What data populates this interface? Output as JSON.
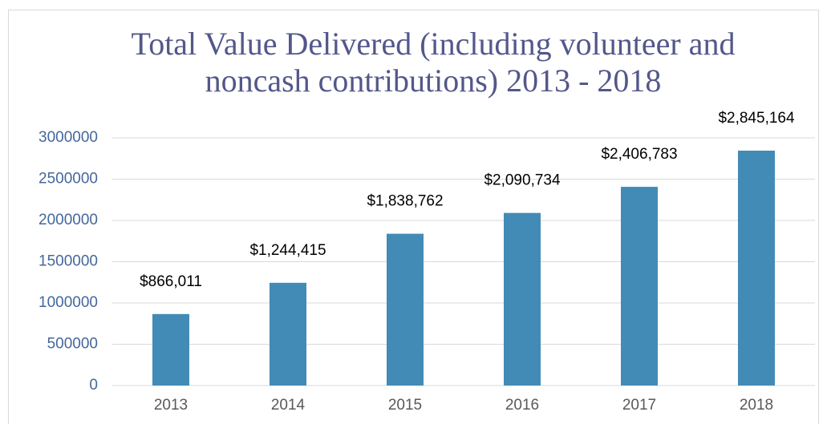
{
  "chart_data": {
    "type": "bar",
    "title": "Total Value Delivered (including volunteer and noncash contributions) 2013 - 2018",
    "categories": [
      "2013",
      "2014",
      "2015",
      "2016",
      "2017",
      "2018"
    ],
    "values": [
      866011,
      1244415,
      1838762,
      2090734,
      2406783,
      2845164
    ],
    "value_labels": [
      "$866,011",
      "$1,244,415",
      "$1,838,762",
      "$2,090,734",
      "$2,406,783",
      "$2,845,164"
    ],
    "color": "#428bb6",
    "ylim": [
      0,
      3000000
    ],
    "yticks": [
      0,
      500000,
      1000000,
      1500000,
      2000000,
      2500000,
      3000000
    ],
    "grid": true
  }
}
